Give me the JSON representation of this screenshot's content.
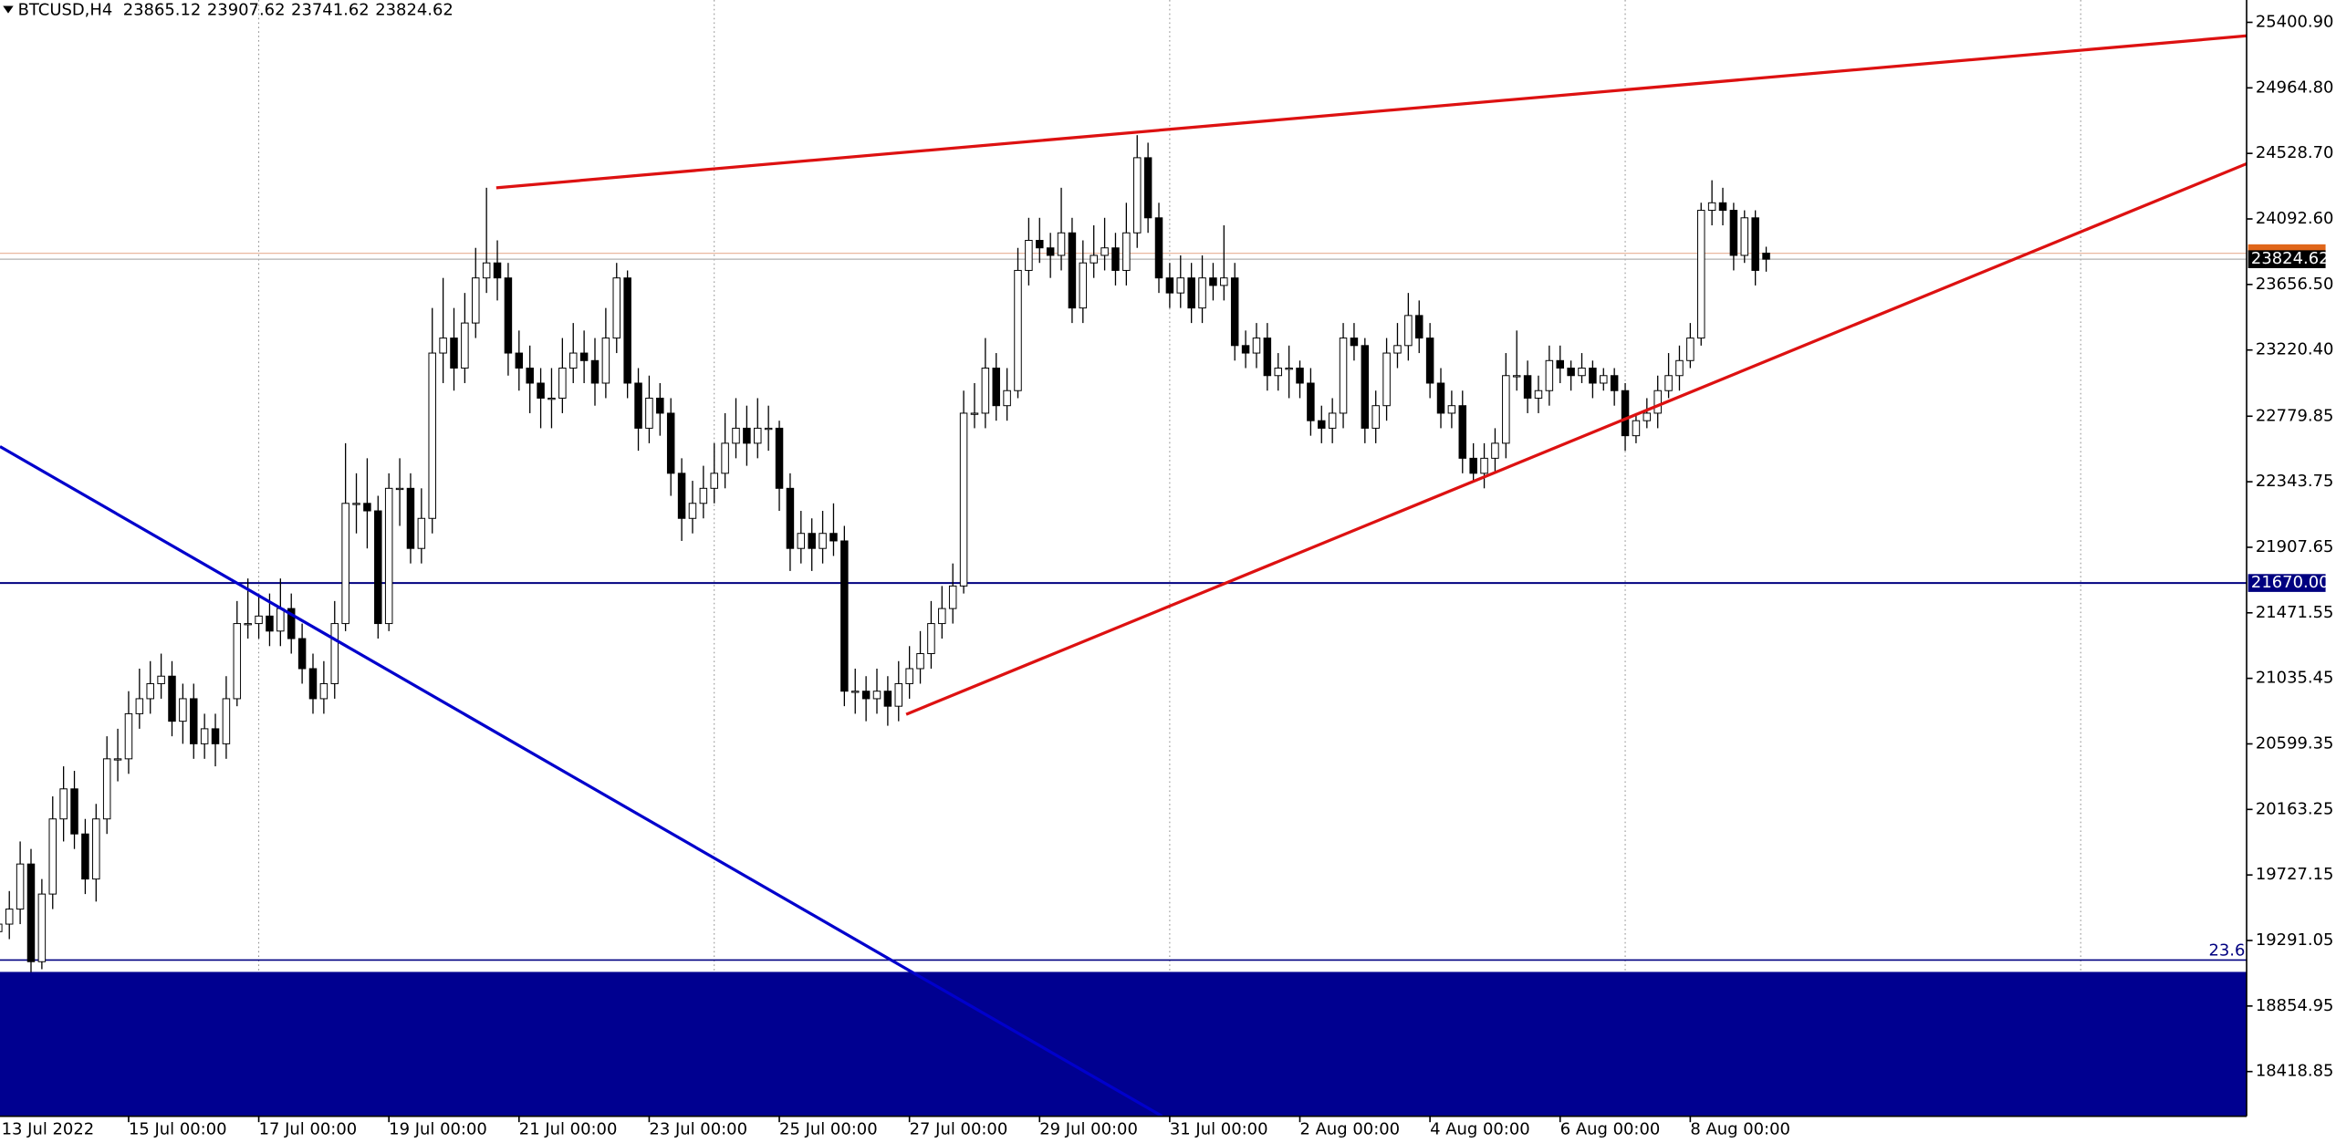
{
  "chart_data": {
    "type": "candlestick",
    "title": "BTCUSD,H4",
    "bull_color": "#ffffff",
    "bear_color": "#000000",
    "ylim": [
      18121.7,
      25549.5
    ],
    "xlim": [
      0.14,
      207.3
    ],
    "yticks": [
      {
        "value": 25400.9,
        "label": "25400.90"
      },
      {
        "value": 24964.8,
        "label": "24964.80"
      },
      {
        "value": 24528.7,
        "label": "24528.70"
      },
      {
        "value": 24092.6,
        "label": "24092.60"
      },
      {
        "value": 23656.5,
        "label": "23656.50"
      },
      {
        "value": 23220.4,
        "label": "23220.40"
      },
      22779.85,
      22343.75,
      21907.65,
      21471.55,
      21035.45,
      20599.35,
      20163.25,
      19727.15,
      19291.05,
      18854.95,
      18418.85
    ],
    "xticks": [
      {
        "value": 0,
        "label": "13 Jul 2022"
      },
      {
        "value": 12,
        "label": "15 Jul 00:00"
      },
      {
        "value": 24,
        "label": "17 Jul 00:00"
      },
      {
        "value": 36,
        "label": "19 Jul 00:00"
      },
      {
        "value": 48,
        "label": "21 Jul 00:00"
      },
      {
        "value": 60,
        "label": "23 Jul 00:00"
      },
      {
        "value": 72,
        "label": "25 Jul 00:00"
      },
      {
        "value": 84,
        "label": "27 Jul 00:00"
      },
      {
        "value": 96,
        "label": "29 Jul 00:00"
      },
      {
        "value": 108,
        "label": "31 Jul 00:00"
      },
      {
        "value": 120,
        "label": "2 Aug 00:00"
      },
      {
        "value": 132,
        "label": "4 Aug 00:00"
      },
      {
        "value": 144,
        "label": "6 Aug 00:00"
      },
      {
        "value": 156,
        "label": "8 Aug 00:00"
      }
    ],
    "xgrid": [
      24,
      66,
      108,
      150,
      192
    ],
    "grid": true,
    "hline": {
      "value": 21670,
      "label": "21670.00",
      "color": "#000080"
    },
    "fibo": {
      "value": 19161,
      "label": "23.6",
      "color": "#000080"
    },
    "band_top": 19082,
    "band_color": "#000090",
    "trendlines": [
      {
        "color": "#dd1111",
        "points": [
          [
            45.9,
            24300
          ],
          [
            207.3,
            25311
          ]
        ]
      },
      {
        "color": "#dd1111",
        "points": [
          [
            83.7,
            20796
          ],
          [
            207.3,
            24460
          ]
        ]
      },
      {
        "color": "#0000cc",
        "points": [
          [
            0.14,
            22578
          ],
          [
            107.3,
            18122
          ]
        ]
      }
    ],
    "ohlc": [
      [
        19350,
        19520,
        19250,
        19400
      ],
      [
        19400,
        19620,
        19300,
        19500
      ],
      [
        19500,
        19950,
        19400,
        19800
      ],
      [
        19800,
        19900,
        19080,
        19150
      ],
      [
        19150,
        19700,
        19100,
        19600
      ],
      [
        19600,
        20250,
        19500,
        20100
      ],
      [
        20100,
        20450,
        19950,
        20300
      ],
      [
        20300,
        20420,
        19900,
        20000
      ],
      [
        20000,
        20100,
        19600,
        19700
      ],
      [
        19700,
        20200,
        19550,
        20100
      ],
      [
        20100,
        20650,
        20000,
        20500
      ],
      [
        20500,
        20700,
        20350,
        20500
      ],
      [
        20500,
        20950,
        20400,
        20800
      ],
      [
        20800,
        21100,
        20700,
        20900
      ],
      [
        20900,
        21150,
        20800,
        21000
      ],
      [
        21000,
        21200,
        20900,
        21050
      ],
      [
        21050,
        21150,
        20650,
        20750
      ],
      [
        20750,
        21000,
        20600,
        20900
      ],
      [
        20900,
        21000,
        20500,
        20600
      ],
      [
        20600,
        20800,
        20500,
        20700
      ],
      [
        20700,
        20800,
        20450,
        20600
      ],
      [
        20600,
        21050,
        20500,
        20900
      ],
      [
        20900,
        21550,
        20850,
        21400
      ],
      [
        21400,
        21700,
        21300,
        21400
      ],
      [
        21400,
        21600,
        21300,
        21450
      ],
      [
        21450,
        21600,
        21250,
        21350
      ],
      [
        21350,
        21700,
        21250,
        21500
      ],
      [
        21500,
        21600,
        21200,
        21300
      ],
      [
        21300,
        21400,
        21000,
        21100
      ],
      [
        21100,
        21200,
        20800,
        20900
      ],
      [
        20900,
        21150,
        20800,
        21000
      ],
      [
        21000,
        21550,
        20900,
        21400
      ],
      [
        21400,
        22600,
        21350,
        22200
      ],
      [
        22200,
        22400,
        22000,
        22200
      ],
      [
        22200,
        22500,
        21900,
        22150
      ],
      [
        22150,
        22250,
        21300,
        21400
      ],
      [
        21400,
        22400,
        21350,
        22300
      ],
      [
        22300,
        22500,
        22050,
        22300
      ],
      [
        22300,
        22400,
        21800,
        21900
      ],
      [
        21900,
        22300,
        21800,
        22100
      ],
      [
        22100,
        23500,
        22000,
        23200
      ],
      [
        23200,
        23700,
        23000,
        23300
      ],
      [
        23300,
        23500,
        22950,
        23100
      ],
      [
        23100,
        23600,
        23000,
        23400
      ],
      [
        23400,
        23900,
        23300,
        23700
      ],
      [
        23700,
        24300,
        23600,
        23800
      ],
      [
        23800,
        23950,
        23550,
        23700
      ],
      [
        23700,
        23800,
        23050,
        23200
      ],
      [
        23200,
        23350,
        22950,
        23100
      ],
      [
        23100,
        23250,
        22800,
        23000
      ],
      [
        23000,
        23100,
        22700,
        22900
      ],
      [
        22900,
        23100,
        22700,
        22900
      ],
      [
        22900,
        23300,
        22800,
        23100
      ],
      [
        23100,
        23400,
        23000,
        23200
      ],
      [
        23200,
        23350,
        23000,
        23150
      ],
      [
        23150,
        23300,
        22850,
        23000
      ],
      [
        23000,
        23500,
        22900,
        23300
      ],
      [
        23300,
        23800,
        23200,
        23700
      ],
      [
        23700,
        23750,
        22900,
        23000
      ],
      [
        23000,
        23100,
        22550,
        22700
      ],
      [
        22700,
        23050,
        22600,
        22900
      ],
      [
        22900,
        23000,
        22650,
        22800
      ],
      [
        22800,
        22900,
        22250,
        22400
      ],
      [
        22400,
        22500,
        21950,
        22100
      ],
      [
        22100,
        22350,
        22000,
        22200
      ],
      [
        22200,
        22450,
        22100,
        22300
      ],
      [
        22300,
        22600,
        22200,
        22400
      ],
      [
        22400,
        22800,
        22300,
        22600
      ],
      [
        22600,
        22900,
        22500,
        22700
      ],
      [
        22700,
        22850,
        22450,
        22600
      ],
      [
        22600,
        22900,
        22500,
        22700
      ],
      [
        22700,
        22850,
        22550,
        22700
      ],
      [
        22700,
        22750,
        22150,
        22300
      ],
      [
        22300,
        22400,
        21750,
        21900
      ],
      [
        21900,
        22150,
        21800,
        22000
      ],
      [
        22000,
        22100,
        21750,
        21900
      ],
      [
        21900,
        22150,
        21800,
        22000
      ],
      [
        22000,
        22200,
        21850,
        21950
      ],
      [
        21950,
        22050,
        20850,
        20950
      ],
      [
        20950,
        21100,
        20800,
        20950
      ],
      [
        20950,
        21050,
        20750,
        20900
      ],
      [
        20900,
        21100,
        20800,
        20950
      ],
      [
        20950,
        21050,
        20720,
        20850
      ],
      [
        20850,
        21150,
        20750,
        21000
      ],
      [
        21000,
        21250,
        20900,
        21100
      ],
      [
        21100,
        21350,
        21000,
        21200
      ],
      [
        21200,
        21550,
        21100,
        21400
      ],
      [
        21400,
        21650,
        21300,
        21500
      ],
      [
        21500,
        21800,
        21400,
        21650
      ],
      [
        21650,
        22950,
        21600,
        22800
      ],
      [
        22800,
        23000,
        22700,
        22800
      ],
      [
        22800,
        23300,
        22700,
        23100
      ],
      [
        23100,
        23200,
        22750,
        22850
      ],
      [
        22850,
        23100,
        22750,
        22950
      ],
      [
        22950,
        23900,
        22900,
        23750
      ],
      [
        23750,
        24100,
        23650,
        23950
      ],
      [
        23950,
        24100,
        23800,
        23900
      ],
      [
        23900,
        24000,
        23700,
        23850
      ],
      [
        23850,
        24300,
        23750,
        24000
      ],
      [
        24000,
        24100,
        23400,
        23500
      ],
      [
        23500,
        23950,
        23400,
        23800
      ],
      [
        23800,
        24050,
        23700,
        23850
      ],
      [
        23850,
        24100,
        23750,
        23900
      ],
      [
        23900,
        24000,
        23650,
        23750
      ],
      [
        23750,
        24200,
        23650,
        24000
      ],
      [
        24000,
        24650,
        23900,
        24500
      ],
      [
        24500,
        24600,
        24000,
        24100
      ],
      [
        24100,
        24200,
        23600,
        23700
      ],
      [
        23700,
        23800,
        23500,
        23600
      ],
      [
        23600,
        23850,
        23500,
        23700
      ],
      [
        23700,
        23800,
        23400,
        23500
      ],
      [
        23500,
        23850,
        23400,
        23700
      ],
      [
        23700,
        23800,
        23550,
        23650
      ],
      [
        23650,
        24050,
        23550,
        23700
      ],
      [
        23700,
        23800,
        23150,
        23250
      ],
      [
        23250,
        23350,
        23100,
        23200
      ],
      [
        23200,
        23400,
        23100,
        23300
      ],
      [
        23300,
        23400,
        22950,
        23050
      ],
      [
        23050,
        23200,
        22950,
        23100
      ],
      [
        23100,
        23250,
        22900,
        23100
      ],
      [
        23100,
        23150,
        22900,
        23000
      ],
      [
        23000,
        23100,
        22650,
        22750
      ],
      [
        22750,
        22850,
        22600,
        22700
      ],
      [
        22700,
        22900,
        22600,
        22800
      ],
      [
        22800,
        23400,
        22700,
        23300
      ],
      [
        23300,
        23400,
        23150,
        23250
      ],
      [
        23250,
        23300,
        22600,
        22700
      ],
      [
        22700,
        22950,
        22600,
        22850
      ],
      [
        22850,
        23300,
        22750,
        23200
      ],
      [
        23200,
        23400,
        23100,
        23250
      ],
      [
        23250,
        23600,
        23150,
        23450
      ],
      [
        23450,
        23550,
        23200,
        23300
      ],
      [
        23300,
        23400,
        22900,
        23000
      ],
      [
        23000,
        23100,
        22700,
        22800
      ],
      [
        22800,
        22950,
        22700,
        22850
      ],
      [
        22850,
        22950,
        22400,
        22500
      ],
      [
        22500,
        22600,
        22350,
        22400
      ],
      [
        22400,
        22600,
        22300,
        22500
      ],
      [
        22500,
        22700,
        22400,
        22600
      ],
      [
        22600,
        23200,
        22500,
        23050
      ],
      [
        23050,
        23350,
        22950,
        23050
      ],
      [
        23050,
        23150,
        22800,
        22900
      ],
      [
        22900,
        23050,
        22800,
        22950
      ],
      [
        22950,
        23250,
        22850,
        23150
      ],
      [
        23150,
        23250,
        23000,
        23100
      ],
      [
        23100,
        23150,
        22950,
        23050
      ],
      [
        23050,
        23200,
        23000,
        23100
      ],
      [
        23100,
        23150,
        22900,
        23000
      ],
      [
        23000,
        23100,
        22950,
        23050
      ],
      [
        23050,
        23100,
        22850,
        22950
      ],
      [
        22950,
        23000,
        22550,
        22650
      ],
      [
        22650,
        22800,
        22600,
        22750
      ],
      [
        22750,
        22900,
        22700,
        22800
      ],
      [
        22800,
        23050,
        22700,
        22950
      ],
      [
        22950,
        23200,
        22900,
        23050
      ],
      [
        23050,
        23250,
        22950,
        23150
      ],
      [
        23150,
        23400,
        23100,
        23300
      ],
      [
        23300,
        24200,
        23250,
        24150
      ],
      [
        24150,
        24350,
        24050,
        24200
      ],
      [
        24200,
        24300,
        24050,
        24150
      ],
      [
        24150,
        24200,
        23750,
        23850
      ],
      [
        23850,
        24150,
        23800,
        24100
      ],
      [
        24100,
        24150,
        23650,
        23750
      ],
      [
        23865.12,
        23907.62,
        23741.62,
        23824.62
      ]
    ]
  }
}
